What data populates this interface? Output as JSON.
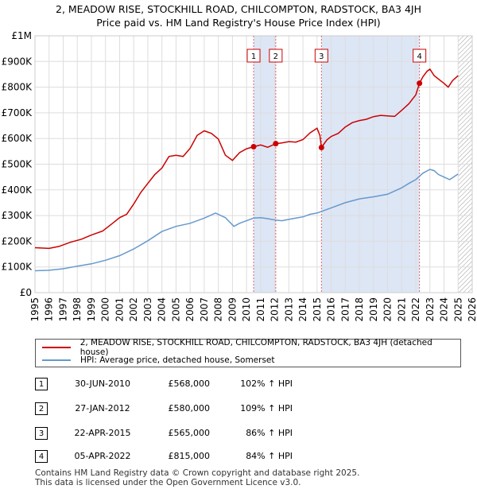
{
  "chart_data": {
    "type": "line",
    "title": "2, MEADOW RISE, STOCKHILL ROAD, CHILCOMPTON, RADSTOCK, BA3 4JH",
    "subtitle": "Price paid vs. HM Land Registry's House Price Index (HPI)",
    "xlim": [
      1995,
      2026
    ],
    "ylim": [
      0,
      1000000
    ],
    "x_ticks": [
      "1995",
      "1996",
      "1997",
      "1998",
      "1999",
      "2000",
      "2001",
      "2002",
      "2003",
      "2004",
      "2005",
      "2006",
      "2007",
      "2008",
      "2009",
      "2010",
      "2011",
      "2012",
      "2013",
      "2014",
      "2015",
      "2016",
      "2017",
      "2018",
      "2019",
      "2020",
      "2021",
      "2022",
      "2023",
      "2024",
      "2025",
      "2026"
    ],
    "y_ticks": [
      {
        "value": 0,
        "label": "£0"
      },
      {
        "value": 100000,
        "label": "£100K"
      },
      {
        "value": 200000,
        "label": "£200K"
      },
      {
        "value": 300000,
        "label": "£300K"
      },
      {
        "value": 400000,
        "label": "£400K"
      },
      {
        "value": 500000,
        "label": "£500K"
      },
      {
        "value": 600000,
        "label": "£600K"
      },
      {
        "value": 700000,
        "label": "£700K"
      },
      {
        "value": 800000,
        "label": "£800K"
      },
      {
        "value": 900000,
        "label": "£900K"
      },
      {
        "value": 1000000,
        "label": "£1M"
      }
    ],
    "series": [
      {
        "name": "2, MEADOW RISE, STOCKHILL ROAD, CHILCOMPTON, RADSTOCK, BA3 4JH (detached house)",
        "color": "#cc0000",
        "x": [
          1995,
          1996,
          1996.7,
          1997.5,
          1998.3,
          1999,
          1999.8,
          2000.5,
          2001,
          2001.5,
          2002,
          2002.5,
          2003,
          2003.5,
          2004,
          2004.5,
          2005,
          2005.5,
          2006,
          2006.5,
          2007,
          2007.5,
          2008,
          2008.5,
          2009,
          2009.5,
          2010,
          2010.5,
          2011,
          2011.5,
          2012.07,
          2012.5,
          2013,
          2013.5,
          2014,
          2014.5,
          2015,
          2015.2,
          2015.31,
          2015.7,
          2016,
          2016.5,
          2017,
          2017.5,
          2018,
          2018.5,
          2019,
          2019.5,
          2020,
          2020.5,
          2021,
          2021.5,
          2022,
          2022.26,
          2022.5,
          2022.8,
          2023,
          2023.3,
          2023.6,
          2024,
          2024.3,
          2024.6,
          2025
        ],
        "y": [
          175000,
          172000,
          180000,
          196000,
          208000,
          224000,
          240000,
          270000,
          292000,
          305000,
          345000,
          390000,
          425000,
          460000,
          485000,
          530000,
          535000,
          530000,
          562000,
          612000,
          630000,
          620000,
          598000,
          535000,
          515000,
          545000,
          560000,
          568000,
          575000,
          566000,
          580000,
          583000,
          588000,
          586000,
          596000,
          622000,
          640000,
          612000,
          565000,
          595000,
          608000,
          620000,
          645000,
          662000,
          670000,
          675000,
          685000,
          690000,
          688000,
          686000,
          710000,
          735000,
          770000,
          815000,
          840000,
          862000,
          870000,
          845000,
          832000,
          815000,
          800000,
          825000,
          845000
        ]
      },
      {
        "name": "HPI: Average price, detached house, Somerset",
        "color": "#6699cc",
        "x": [
          1995,
          1996,
          1997,
          1998,
          1999,
          2000,
          2001,
          2002,
          2003,
          2004,
          2005,
          2006,
          2007,
          2007.8,
          2008.5,
          2009.1,
          2009.5,
          2010,
          2010.5,
          2011,
          2011.5,
          2012,
          2012.5,
          2013,
          2013.5,
          2014,
          2014.5,
          2015,
          2016,
          2017,
          2018,
          2019,
          2020,
          2021,
          2021.5,
          2022,
          2022.5,
          2023,
          2023.3,
          2023.6,
          2024,
          2024.4,
          2025
        ],
        "y": [
          85000,
          87000,
          93000,
          103000,
          112000,
          126000,
          144000,
          170000,
          202000,
          238000,
          258000,
          270000,
          290000,
          310000,
          292000,
          258000,
          270000,
          280000,
          290000,
          292000,
          288000,
          283000,
          280000,
          285000,
          290000,
          295000,
          305000,
          310000,
          330000,
          350000,
          365000,
          373000,
          383000,
          408000,
          425000,
          440000,
          465000,
          480000,
          475000,
          460000,
          450000,
          440000,
          462000
        ]
      }
    ],
    "sales": [
      {
        "id": "1",
        "x": 2010.5,
        "y": 568000,
        "date": "30-JUN-2010",
        "price": "£568,000",
        "hpi": "102% ↑ HPI"
      },
      {
        "id": "2",
        "x": 2012.07,
        "y": 580000,
        "date": "27-JAN-2012",
        "price": "£580,000",
        "hpi": "109% ↑ HPI"
      },
      {
        "id": "3",
        "x": 2015.31,
        "y": 565000,
        "date": "22-APR-2015",
        "price": "£565,000",
        "hpi": "86% ↑ HPI"
      },
      {
        "id": "4",
        "x": 2022.26,
        "y": 815000,
        "date": "05-APR-2022",
        "price": "£815,000",
        "hpi": "84% ↑ HPI"
      }
    ],
    "forecast_from": 2025.0,
    "grid": true
  },
  "legend": {
    "house_label": "2, MEADOW RISE, STOCKHILL ROAD, CHILCOMPTON, RADSTOCK, BA3 4JH (detached house)",
    "hpi_label": "HPI: Average price, detached house, Somerset",
    "house_color": "#cc0000",
    "hpi_color": "#6699cc"
  },
  "footer": {
    "line1": "Contains HM Land Registry data © Crown copyright and database right 2025.",
    "line2": "This data is licensed under the Open Government Licence v3.0."
  }
}
